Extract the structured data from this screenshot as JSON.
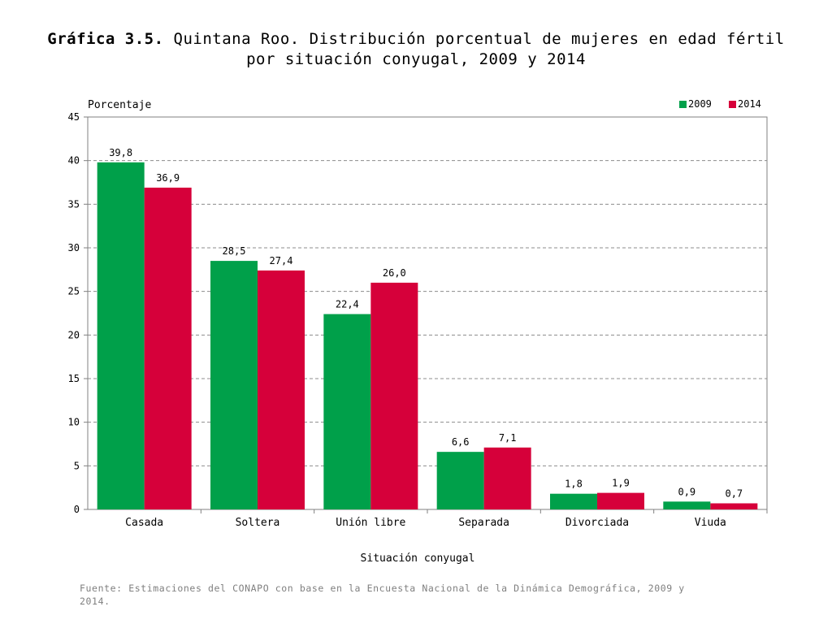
{
  "title": {
    "lead": "Gráfica 3.5.",
    "line1": "Quintana Roo. Distribución porcentual de mujeres en edad fértil",
    "line2": "por situación conyugal, 2009 y 2014"
  },
  "source": "Fuente: Estimaciones del CONAPO con base en la Encuesta Nacional de la Dinámica Demográfica, 2009 y  2014.",
  "chart_data": {
    "type": "bar",
    "title": "Gráfica 3.5. Quintana Roo. Distribución porcentual de mujeres en edad fértil por situación conyugal, 2009 y 2014",
    "ylabel": "Porcentaje",
    "xlabel": "Situación conyugal",
    "ylim": [
      0,
      45
    ],
    "yticks": [
      0,
      5,
      10,
      15,
      20,
      25,
      30,
      35,
      40,
      45
    ],
    "grid": true,
    "legend_position": "top-right",
    "categories": [
      "Casada",
      "Soltera",
      "Unión libre",
      "Separada",
      "Divorciada",
      "Viuda"
    ],
    "series": [
      {
        "name": "2009",
        "color": "#00a04a",
        "values": [
          39.8,
          28.5,
          22.4,
          6.6,
          1.8,
          0.9
        ],
        "labels": [
          "39,8",
          "28,5",
          "22,4",
          "6,6",
          "1,8",
          "0,9"
        ]
      },
      {
        "name": "2014",
        "color": "#d6003a",
        "values": [
          36.9,
          27.4,
          26.0,
          7.1,
          1.9,
          0.7
        ],
        "labels": [
          "36,9",
          "27,4",
          "26,0",
          "7,1",
          "1,9",
          "0,7"
        ]
      }
    ]
  }
}
